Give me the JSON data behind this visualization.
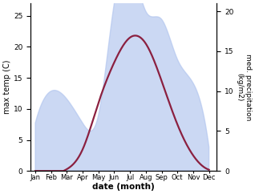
{
  "months": [
    1,
    2,
    3,
    4,
    5,
    6,
    7,
    8,
    9,
    10,
    11,
    12
  ],
  "month_labels": [
    "Jan",
    "Feb",
    "Mar",
    "Apr",
    "May",
    "Jun",
    "Jul",
    "Aug",
    "Sep",
    "Oct",
    "Nov",
    "Dec"
  ],
  "temp": [
    -0.5,
    -0.5,
    0.3,
    3.5,
    11.0,
    17.5,
    21.5,
    20.5,
    14.5,
    7.5,
    2.5,
    0.2
  ],
  "precip": [
    6,
    10,
    9,
    6,
    7,
    21,
    26,
    20,
    19,
    14,
    11,
    3
  ],
  "temp_ylim": [
    0,
    27
  ],
  "precip_ylim": [
    0,
    21
  ],
  "temp_yticks": [
    0,
    5,
    10,
    15,
    20,
    25
  ],
  "precip_yticks": [
    0,
    5,
    10,
    15,
    20
  ],
  "fill_color": "#b0c4ee",
  "fill_alpha": 0.65,
  "line_color": "#8b2040",
  "line_width": 1.6,
  "xlabel": "date (month)",
  "ylabel_left": "max temp (C)",
  "ylabel_right": "med. precipitation\n(kg/m2)",
  "bg_color": "#ffffff"
}
